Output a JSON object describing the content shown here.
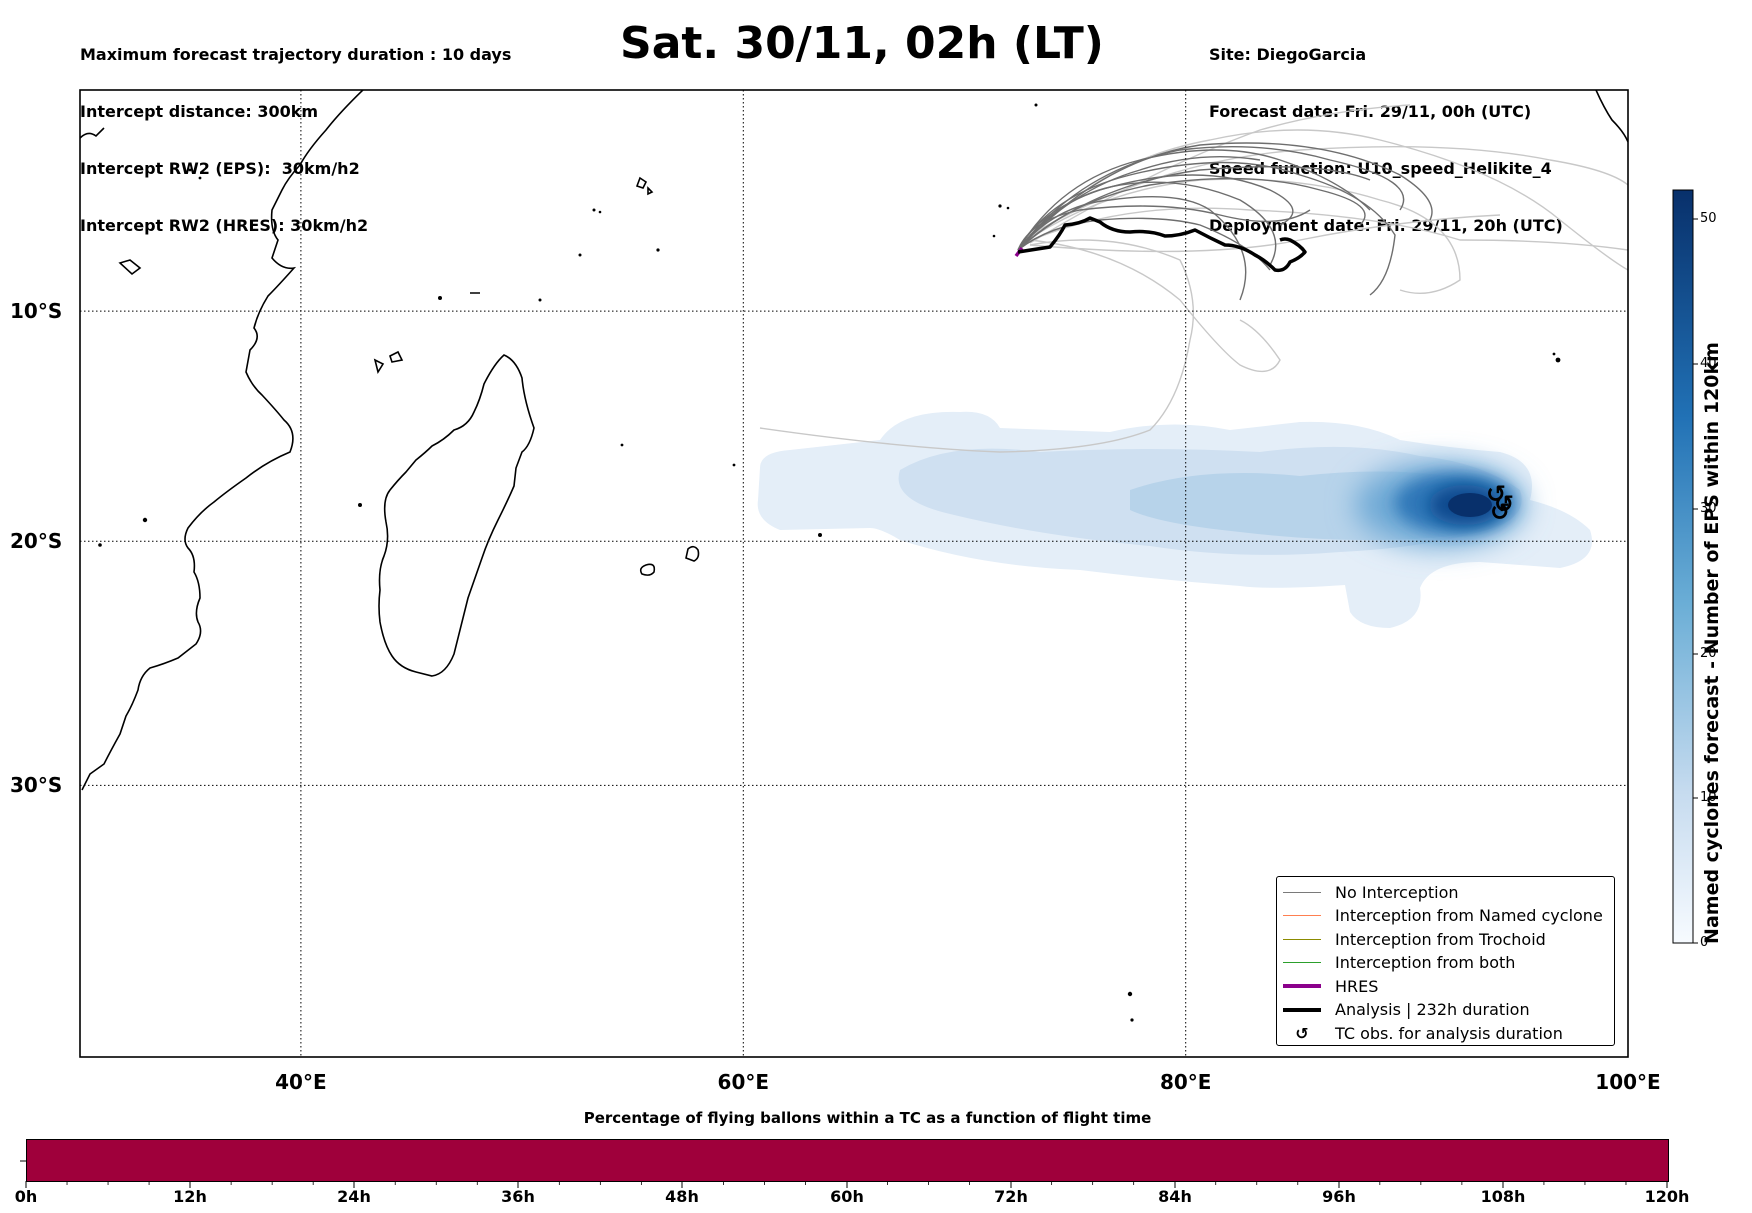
{
  "header_left": [
    "Maximum forecast trajectory duration : 10 days",
    "Intercept distance: 300km",
    "Intercept RW2 (EPS):  30km/h2",
    "Intercept RW2 (HRES): 30km/h2"
  ],
  "header_right": [
    "Site: DiegoGarcia",
    "Forecast date: Fri. 29/11, 00h (UTC)",
    "Speed function: U10_speed_Helikite_4",
    "Deployment date: Fri. 29/11, 20h (UTC)"
  ],
  "title": "Sat. 30/11, 02h (LT)",
  "map": {
    "lon_range": [
      30,
      100
    ],
    "lat_range": [
      -43,
      1
    ],
    "lon_ticks": [
      "40°E",
      "60°E",
      "80°E",
      "100°E"
    ],
    "lat_ticks": [
      "10°S",
      "20°S",
      "30°S"
    ],
    "grid": "dotted",
    "coastline_color": "#000000",
    "density_colormap": "Blues",
    "analysis_track_color": "#000000",
    "no_interception_track_color": "#6e6e6e",
    "faded_track_color": "#c8c8c8",
    "hres_track_color": "#8b008b"
  },
  "colorbar": {
    "label": "Named cyclones forecast - Number of EPS within 120km",
    "ticks": [
      "0",
      "10",
      "20",
      "30",
      "40",
      "50"
    ],
    "range": [
      0,
      52
    ],
    "colormap": "Blues"
  },
  "legend": [
    {
      "label": "No Interception",
      "color": "#7a7a7a",
      "style": "line-thin"
    },
    {
      "label": "Interception from Named cyclone",
      "color": "#ff7f50",
      "style": "line-thin"
    },
    {
      "label": "Interception from Trochoid",
      "color": "#8b8b00",
      "style": "line-thin"
    },
    {
      "label": "Interception from both",
      "color": "#2ca02c",
      "style": "line-thin"
    },
    {
      "label": "HRES",
      "color": "#8b008b",
      "style": "line-thick"
    },
    {
      "label": "Analysis | 232h duration",
      "color": "#000000",
      "style": "line-thick"
    },
    {
      "label": "TC obs. for analysis duration",
      "color": "#000000",
      "style": "cyclone-symbol",
      "symbol": "↺"
    }
  ],
  "bottom_bar": {
    "title": "Percentage of flying ballons within a TC as a function of flight time",
    "ticks": [
      "0h",
      "12h",
      "24h",
      "36h",
      "48h",
      "60h",
      "72h",
      "84h",
      "96h",
      "108h",
      "120h"
    ],
    "color": "#9f003b"
  }
}
